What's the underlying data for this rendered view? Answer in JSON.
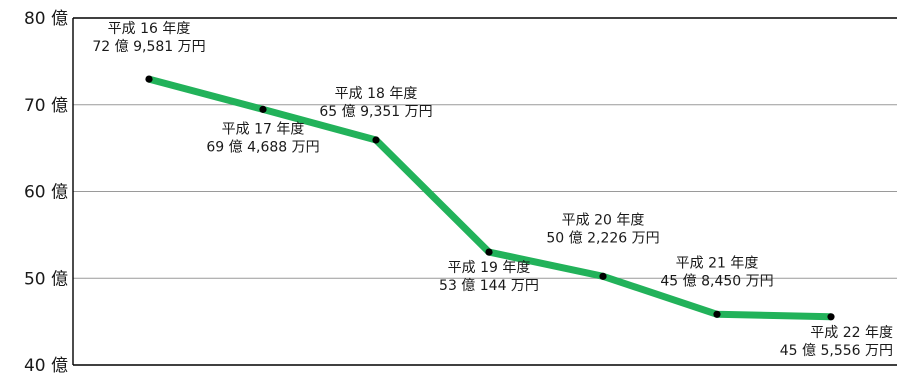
{
  "chart_data": {
    "type": "line",
    "title": "",
    "xlabel": "",
    "ylabel": "",
    "ylim": [
      40,
      80
    ],
    "y_ticks": [
      {
        "value": 40,
        "label": "40 億"
      },
      {
        "value": 50,
        "label": "50 億"
      },
      {
        "value": 60,
        "label": "60 億"
      },
      {
        "value": 70,
        "label": "70 億"
      },
      {
        "value": 80,
        "label": "80 億"
      }
    ],
    "grid": true,
    "line_color": "#22b25a",
    "point_color": "#000000",
    "series": [
      {
        "points": [
          {
            "year_label": "平成 16 年度",
            "value_label": "72 億 9,581 万円",
            "value": 72.9581
          },
          {
            "year_label": "平成 17 年度",
            "value_label": "69 億 4,688 万円",
            "value": 69.4688
          },
          {
            "year_label": "平成 18 年度",
            "value_label": "65 億 9,351 万円",
            "value": 65.9351
          },
          {
            "year_label": "平成 19 年度",
            "value_label": "53 億 144 万円",
            "value": 53.0144
          },
          {
            "year_label": "平成 20 年度",
            "value_label": "50 億 2,226 万円",
            "value": 50.2226
          },
          {
            "year_label": "平成 21 年度",
            "value_label": "45 億 8,450 万円",
            "value": 45.845
          },
          {
            "year_label": "平成 22 年度",
            "value_label": "45 億 5,556 万円",
            "value": 45.5556
          }
        ]
      }
    ]
  }
}
